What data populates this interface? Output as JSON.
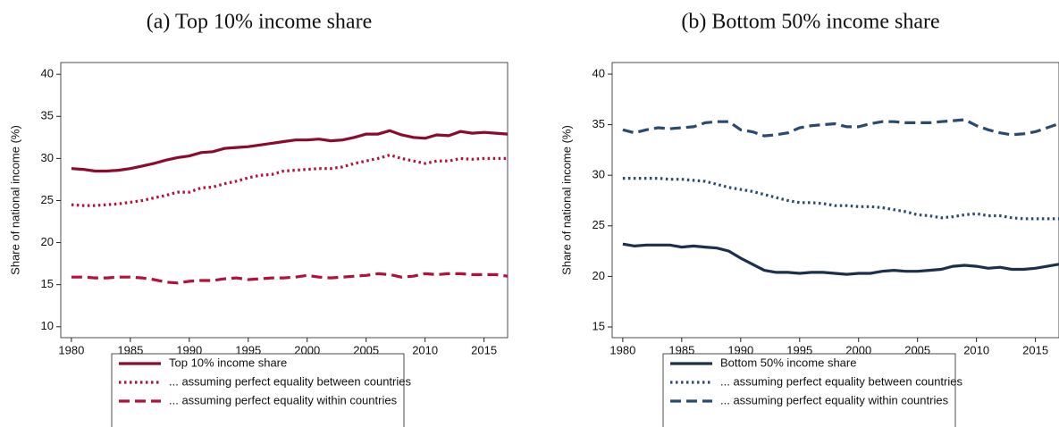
{
  "chart_data": [
    {
      "type": "line",
      "title": "(a) Top 10% income share",
      "ylabel": "Share of national income (%)",
      "x": [
        1980,
        1981,
        1982,
        1983,
        1984,
        1985,
        1986,
        1987,
        1988,
        1989,
        1990,
        1991,
        1992,
        1993,
        1994,
        1995,
        1996,
        1997,
        1998,
        1999,
        2000,
        2001,
        2002,
        2003,
        2004,
        2005,
        2006,
        2007,
        2008,
        2009,
        2010,
        2011,
        2012,
        2013,
        2014,
        2015,
        2016,
        2017
      ],
      "xlim": [
        1979.1,
        2017
      ],
      "xticks": [
        1980,
        1985,
        1990,
        1995,
        2000,
        2005,
        2010,
        2015
      ],
      "ylim": [
        8.7,
        41.4
      ],
      "yticks": [
        10,
        15,
        20,
        25,
        30,
        35,
        40
      ],
      "grid": false,
      "legend": "bottom",
      "series": [
        {
          "name": "Top 10% income share",
          "color": "#8b0a2e",
          "style": "solid",
          "values": [
            28.8,
            28.7,
            28.5,
            28.5,
            28.6,
            28.8,
            29.1,
            29.4,
            29.8,
            30.1,
            30.3,
            30.7,
            30.8,
            31.2,
            31.3,
            31.4,
            31.6,
            31.8,
            32.0,
            32.2,
            32.2,
            32.3,
            32.1,
            32.2,
            32.5,
            32.9,
            32.9,
            33.3,
            32.8,
            32.5,
            32.4,
            32.8,
            32.7,
            33.2,
            33.0,
            33.1,
            33.0,
            32.9
          ]
        },
        {
          "name": "... assuming perfect equality between countries",
          "color": "#b5103a",
          "style": "dotted",
          "values": [
            24.5,
            24.4,
            24.4,
            24.5,
            24.6,
            24.8,
            25.0,
            25.3,
            25.6,
            26.0,
            26.0,
            26.5,
            26.6,
            27.0,
            27.3,
            27.7,
            28.0,
            28.1,
            28.5,
            28.6,
            28.7,
            28.8,
            28.8,
            29.0,
            29.4,
            29.7,
            30.0,
            30.4,
            30.0,
            29.7,
            29.4,
            29.7,
            29.7,
            30.0,
            29.9,
            30.0,
            30.0,
            30.0
          ]
        },
        {
          "name": "... assuming perfect equality within countries",
          "color": "#b5103a",
          "style": "dashed",
          "values": [
            15.9,
            15.9,
            15.8,
            15.8,
            15.9,
            15.9,
            15.8,
            15.6,
            15.3,
            15.2,
            15.4,
            15.5,
            15.5,
            15.7,
            15.8,
            15.6,
            15.7,
            15.8,
            15.8,
            15.9,
            16.1,
            15.9,
            15.8,
            15.9,
            16.0,
            16.1,
            16.3,
            16.2,
            15.9,
            16.0,
            16.3,
            16.2,
            16.3,
            16.3,
            16.2,
            16.2,
            16.2,
            16.0
          ]
        }
      ]
    },
    {
      "type": "line",
      "title": "(b) Bottom 50% income share",
      "ylabel": "Share of national income (%)",
      "x": [
        1980,
        1981,
        1982,
        1983,
        1984,
        1985,
        1986,
        1987,
        1988,
        1989,
        1990,
        1991,
        1992,
        1993,
        1994,
        1995,
        1996,
        1997,
        1998,
        1999,
        2000,
        2001,
        2002,
        2003,
        2004,
        2005,
        2006,
        2007,
        2008,
        2009,
        2010,
        2011,
        2012,
        2013,
        2014,
        2015,
        2016,
        2017
      ],
      "xlim": [
        1979.1,
        2017
      ],
      "xticks": [
        1980,
        1985,
        1990,
        1995,
        2000,
        2005,
        2010,
        2015
      ],
      "ylim": [
        13.94,
        41.15
      ],
      "yticks": [
        15,
        20,
        25,
        30,
        35,
        40
      ],
      "grid": false,
      "legend": "bottom",
      "series": [
        {
          "name": "Bottom 50% income share",
          "color": "#1c2f4c",
          "style": "solid",
          "values": [
            23.2,
            23.0,
            23.1,
            23.1,
            23.1,
            22.9,
            23.0,
            22.9,
            22.8,
            22.5,
            21.8,
            21.2,
            20.6,
            20.4,
            20.4,
            20.3,
            20.4,
            20.4,
            20.3,
            20.2,
            20.3,
            20.3,
            20.5,
            20.6,
            20.5,
            20.5,
            20.6,
            20.7,
            21.0,
            21.1,
            21.0,
            20.8,
            20.9,
            20.7,
            20.7,
            20.8,
            21.0,
            21.2
          ]
        },
        {
          "name": "... assuming perfect equality between countries",
          "color": "#2b4a70",
          "style": "dotted",
          "values": [
            29.7,
            29.7,
            29.7,
            29.7,
            29.6,
            29.6,
            29.5,
            29.4,
            29.1,
            28.8,
            28.6,
            28.4,
            28.1,
            27.8,
            27.5,
            27.3,
            27.3,
            27.2,
            27.0,
            27.0,
            26.9,
            26.9,
            26.8,
            26.6,
            26.4,
            26.1,
            26.0,
            25.8,
            25.9,
            26.1,
            26.2,
            26.0,
            26.0,
            25.8,
            25.7,
            25.7,
            25.7,
            25.7
          ]
        },
        {
          "name": "... assuming perfect equality within countries",
          "color": "#2b4a70",
          "style": "dashed",
          "values": [
            34.5,
            34.2,
            34.5,
            34.7,
            34.6,
            34.7,
            34.8,
            35.2,
            35.3,
            35.3,
            34.5,
            34.3,
            33.9,
            34.0,
            34.2,
            34.7,
            34.9,
            35.0,
            35.1,
            34.8,
            34.8,
            35.1,
            35.3,
            35.3,
            35.2,
            35.2,
            35.2,
            35.3,
            35.4,
            35.5,
            34.9,
            34.5,
            34.2,
            34.0,
            34.1,
            34.3,
            34.7,
            35.1
          ]
        }
      ]
    }
  ]
}
